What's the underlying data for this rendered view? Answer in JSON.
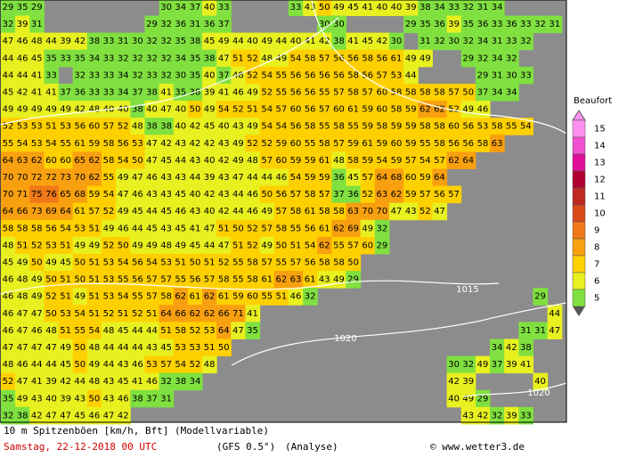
{
  "map": {
    "grid": [
      [
        29,
        35,
        29,
        null,
        null,
        null,
        null,
        null,
        null,
        null,
        null,
        30,
        34,
        37,
        40,
        33,
        null,
        null,
        null,
        null,
        33,
        43,
        50,
        49,
        45,
        41,
        40,
        40,
        39,
        38,
        34,
        33,
        32,
        31,
        34
      ],
      [
        32,
        39,
        31,
        null,
        null,
        null,
        null,
        null,
        null,
        null,
        29,
        32,
        36,
        31,
        36,
        37,
        null,
        null,
        null,
        null,
        null,
        null,
        30,
        30,
        null,
        null,
        null,
        null,
        29,
        35,
        36,
        39,
        35,
        36,
        33,
        36,
        33,
        32,
        31
      ],
      [
        47,
        46,
        48,
        44,
        39,
        42,
        38,
        33,
        31,
        30,
        32,
        32,
        35,
        38,
        45,
        49,
        44,
        40,
        49,
        44,
        40,
        41,
        42,
        38,
        41,
        45,
        42,
        30,
        null,
        31,
        32,
        30,
        32,
        34,
        31,
        33,
        32
      ],
      [
        44,
        46,
        45,
        35,
        33,
        35,
        34,
        33,
        32,
        32,
        32,
        32,
        34,
        35,
        38,
        47,
        51,
        52,
        48,
        49,
        54,
        58,
        57,
        56,
        56,
        58,
        56,
        61,
        49,
        49,
        null,
        null,
        29,
        32,
        34,
        32
      ],
      [
        44,
        44,
        41,
        33,
        null,
        32,
        33,
        33,
        34,
        32,
        33,
        32,
        30,
        35,
        40,
        37,
        48,
        52,
        54,
        55,
        56,
        56,
        56,
        56,
        58,
        56,
        57,
        53,
        44,
        null,
        null,
        null,
        null,
        29,
        31,
        30,
        33
      ],
      [
        45,
        42,
        41,
        41,
        37,
        36,
        33,
        33,
        34,
        37,
        38,
        41,
        35,
        38,
        39,
        41,
        46,
        49,
        52,
        55,
        56,
        56,
        55,
        57,
        58,
        57,
        60,
        58,
        58,
        58,
        58,
        57,
        50,
        37,
        34,
        34
      ],
      [
        49,
        49,
        49,
        49,
        49,
        42,
        48,
        40,
        40,
        38,
        40,
        47,
        40,
        50,
        49,
        54,
        52,
        51,
        54,
        57,
        60,
        56,
        57,
        60,
        61,
        59,
        60,
        58,
        59,
        62,
        62,
        52,
        49,
        46
      ],
      [
        52,
        53,
        53,
        51,
        53,
        56,
        60,
        57,
        52,
        48,
        38,
        38,
        40,
        42,
        45,
        40,
        43,
        49,
        54,
        54,
        56,
        58,
        55,
        58,
        55,
        59,
        58,
        59,
        59,
        58,
        58,
        60,
        56,
        53,
        58,
        55,
        54
      ],
      [
        55,
        54,
        53,
        54,
        55,
        61,
        59,
        58,
        56,
        53,
        47,
        42,
        43,
        42,
        42,
        43,
        49,
        52,
        52,
        59,
        60,
        55,
        58,
        57,
        59,
        61,
        59,
        60,
        59,
        55,
        58,
        56,
        56,
        58,
        63
      ],
      [
        64,
        63,
        62,
        60,
        60,
        65,
        62,
        58,
        54,
        50,
        47,
        45,
        44,
        43,
        40,
        42,
        49,
        48,
        57,
        60,
        59,
        59,
        61,
        48,
        58,
        59,
        54,
        59,
        57,
        54,
        57,
        62,
        64
      ],
      [
        70,
        70,
        72,
        72,
        73,
        70,
        62,
        55,
        49,
        47,
        46,
        43,
        43,
        44,
        39,
        43,
        47,
        44,
        44,
        46,
        54,
        59,
        59,
        36,
        45,
        57,
        64,
        68,
        60,
        59,
        64
      ],
      [
        70,
        71,
        75,
        76,
        65,
        68,
        59,
        54,
        47,
        46,
        43,
        43,
        45,
        40,
        42,
        43,
        44,
        46,
        50,
        56,
        57,
        58,
        57,
        37,
        36,
        52,
        63,
        62,
        59,
        57,
        56,
        57
      ],
      [
        64,
        66,
        73,
        69,
        64,
        61,
        57,
        52,
        49,
        45,
        44,
        45,
        46,
        43,
        40,
        42,
        44,
        46,
        49,
        57,
        58,
        61,
        58,
        58,
        63,
        70,
        70,
        47,
        43,
        52,
        47
      ],
      [
        58,
        58,
        58,
        56,
        54,
        53,
        51,
        49,
        46,
        44,
        45,
        43,
        45,
        41,
        47,
        51,
        50,
        52,
        57,
        58,
        55,
        56,
        61,
        62,
        69,
        49,
        32
      ],
      [
        48,
        51,
        52,
        53,
        51,
        49,
        49,
        52,
        50,
        49,
        49,
        48,
        49,
        45,
        44,
        47,
        51,
        52,
        49,
        50,
        51,
        54,
        62,
        55,
        57,
        60,
        29
      ],
      [
        45,
        49,
        50,
        49,
        45,
        50,
        51,
        53,
        54,
        56,
        54,
        53,
        51,
        50,
        51,
        52,
        55,
        58,
        57,
        55,
        57,
        56,
        58,
        58,
        50
      ],
      [
        46,
        48,
        49,
        50,
        51,
        50,
        51,
        53,
        55,
        56,
        57,
        57,
        55,
        56,
        57,
        58,
        55,
        58,
        61,
        62,
        63,
        61,
        43,
        49,
        29
      ],
      [
        46,
        48,
        49,
        52,
        51,
        49,
        51,
        53,
        54,
        55,
        57,
        58,
        62,
        61,
        62,
        61,
        59,
        60,
        55,
        51,
        46,
        32,
        null,
        null,
        null,
        null,
        null,
        null,
        null,
        null,
        null,
        null,
        null,
        null,
        null,
        null,
        null,
        29
      ],
      [
        46,
        47,
        47,
        50,
        53,
        54,
        51,
        52,
        51,
        52,
        51,
        64,
        66,
        62,
        62,
        66,
        71,
        41,
        null,
        null,
        null,
        null,
        null,
        null,
        null,
        null,
        null,
        null,
        null,
        null,
        null,
        null,
        null,
        null,
        null,
        null,
        null,
        null,
        44
      ],
      [
        46,
        47,
        46,
        48,
        51,
        55,
        54,
        48,
        45,
        44,
        44,
        51,
        58,
        52,
        53,
        64,
        47,
        35,
        null,
        null,
        null,
        null,
        null,
        null,
        null,
        null,
        null,
        null,
        null,
        null,
        null,
        null,
        null,
        null,
        null,
        null,
        31,
        31,
        47
      ],
      [
        47,
        47,
        47,
        47,
        49,
        50,
        48,
        44,
        44,
        44,
        43,
        45,
        53,
        53,
        51,
        50,
        null,
        null,
        null,
        null,
        null,
        null,
        null,
        null,
        null,
        null,
        null,
        null,
        null,
        null,
        null,
        null,
        null,
        null,
        34,
        42,
        38
      ],
      [
        48,
        46,
        44,
        44,
        45,
        50,
        49,
        44,
        43,
        46,
        53,
        57,
        54,
        52,
        48,
        null,
        null,
        null,
        null,
        null,
        null,
        null,
        null,
        null,
        null,
        null,
        null,
        null,
        null,
        null,
        null,
        30,
        32,
        49,
        37,
        39,
        41
      ],
      [
        52,
        47,
        41,
        39,
        42,
        44,
        48,
        43,
        45,
        41,
        46,
        32,
        38,
        34,
        null,
        null,
        null,
        null,
        null,
        null,
        null,
        null,
        null,
        null,
        null,
        null,
        null,
        null,
        null,
        null,
        null,
        42,
        39,
        null,
        null,
        null,
        null,
        40
      ],
      [
        35,
        49,
        43,
        40,
        39,
        43,
        50,
        43,
        46,
        38,
        37,
        31,
        null,
        null,
        null,
        null,
        null,
        null,
        null,
        null,
        null,
        null,
        null,
        null,
        null,
        null,
        null,
        null,
        null,
        null,
        null,
        40,
        49,
        29
      ],
      [
        32,
        38,
        42,
        47,
        47,
        45,
        46,
        47,
        42,
        null,
        null,
        null,
        null,
        null,
        null,
        null,
        null,
        null,
        null,
        null,
        null,
        null,
        null,
        null,
        null,
        null,
        null,
        null,
        null,
        null,
        null,
        null,
        43,
        42,
        32,
        39,
        33
      ]
    ],
    "isobar_labels": [
      1015,
      1020,
      1020
    ],
    "legend": {
      "title": "Beaufort",
      "levels": [
        15,
        14,
        13,
        12,
        11,
        10,
        9,
        8,
        7,
        6,
        5
      ],
      "colors": [
        "#ff90f0",
        "#f050d0",
        "#e0109a",
        "#b00030",
        "#c02820",
        "#d84a18",
        "#f07818",
        "#f8a010",
        "#ffd000",
        "#e8f020",
        "#80e040"
      ]
    },
    "caption": "10 m Spitzenböen [km/h, Bft] (Modellvariable)",
    "date": "Samstag, 22-12-2018  00 UTC",
    "model": "(GFS 0.5°)",
    "run": "(Analyse)",
    "source": "© www.wetter3.de"
  }
}
